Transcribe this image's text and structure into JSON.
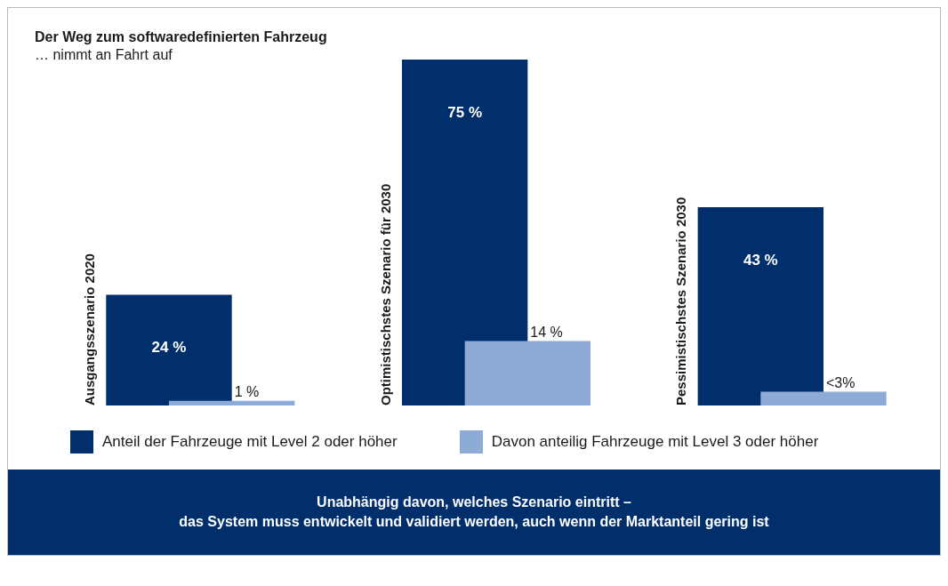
{
  "chart_data": {
    "type": "bar",
    "title": "Der Weg zum softwaredefinierten Fahrzeug",
    "subtitle": "… nimmt an Fahrt auf",
    "categories": [
      "Ausgangsszenario 2020",
      "Optimistischstes Szenario für 2030",
      "Pessimistischstes Szenario 2030"
    ],
    "series": [
      {
        "name": "Anteil der Fahrzeuge mit Level 2 oder höher",
        "color": "#002f6c",
        "values": [
          24,
          75,
          43
        ],
        "value_labels": [
          "24 %",
          "75 %",
          "43 %"
        ]
      },
      {
        "name": "Davon anteilig Fahrzeuge mit Level 3 oder höher",
        "color": "#8eaad6",
        "values": [
          1,
          14,
          3
        ],
        "value_labels": [
          "1 %",
          "14 %",
          "<3%"
        ]
      }
    ],
    "legend": "bottom",
    "annotations": [
      "Unabhängig davon, welches Szenario eintritt –\ndas System muss entwickelt und validiert werden, auch wenn der Marktanteil gering ist"
    ]
  }
}
